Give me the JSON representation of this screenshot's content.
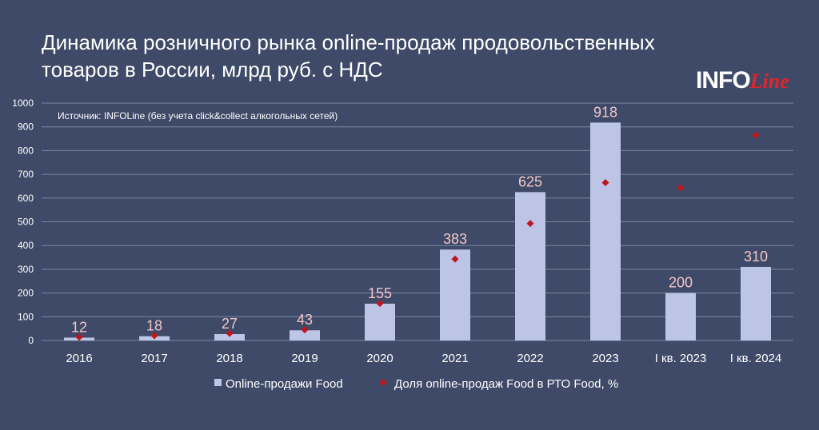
{
  "chart_data": {
    "type": "bar",
    "title": "Динамика розничного рынка online-продаж продовольственных товаров в России, млрд руб. с НДС",
    "source": "Источник: INFOLine (без учета click&collect алкогольных сетей)",
    "categories": [
      "2016",
      "2017",
      "2018",
      "2019",
      "2020",
      "2021",
      "2022",
      "2023",
      "I кв. 2023",
      "I кв. 2024"
    ],
    "series": [
      {
        "name": "Online-продажи Food",
        "type": "bar",
        "color": "#bcc5e6",
        "values": [
          12,
          18,
          27,
          43,
          155,
          383,
          625,
          918,
          200,
          310
        ],
        "labels": [
          "12",
          "18",
          "27",
          "43",
          "155",
          "383",
          "625",
          "918",
          "200",
          "310"
        ]
      },
      {
        "name": "Доля online-продаж Food в РТО Food, %",
        "type": "scatter",
        "color": "#c0151b",
        "values": [
          14,
          20,
          30,
          45,
          156,
          343,
          493,
          665,
          643,
          865
        ]
      }
    ],
    "ylim": [
      0,
      1000
    ],
    "yticks": [
      0,
      100,
      200,
      300,
      400,
      500,
      600,
      700,
      800,
      900,
      1000
    ],
    "grid": true,
    "legend": "bottom"
  },
  "logo": {
    "info": "INFO",
    "line": "Line"
  }
}
